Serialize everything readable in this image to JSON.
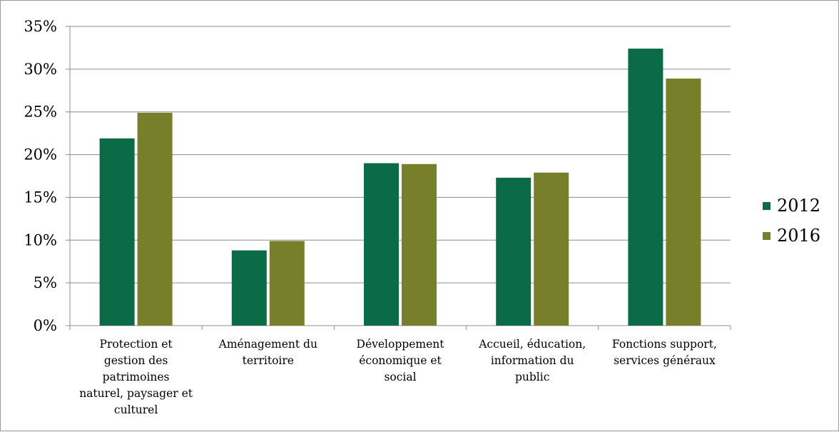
{
  "chart_data": {
    "type": "bar",
    "categories": [
      "Protection et gestion des patrimoines naturel, paysager et culturel",
      "Aménagement du territoire",
      "Développement économique et social",
      "Accueil, éducation, information du public",
      "Fonctions support, services généraux"
    ],
    "category_lines": [
      [
        "Protection et",
        "gestion des",
        "patrimoines",
        "naturel, paysager et",
        "culturel"
      ],
      [
        "Aménagement du",
        "territoire"
      ],
      [
        "Développement",
        "économique et",
        "social"
      ],
      [
        "Accueil, éducation,",
        "information du",
        "public"
      ],
      [
        "Fonctions support,",
        "services généraux"
      ]
    ],
    "series": [
      {
        "name": "2012",
        "color": "#0b6b47",
        "values": [
          21.9,
          8.8,
          19.0,
          17.3,
          32.4
        ]
      },
      {
        "name": "2016",
        "color": "#777f2a",
        "values": [
          24.9,
          9.9,
          18.9,
          17.9,
          28.9
        ]
      }
    ],
    "yticks": [
      "0%",
      "5%",
      "10%",
      "15%",
      "20%",
      "25%",
      "30%",
      "35%"
    ],
    "ylim": [
      0,
      35
    ],
    "grid": true,
    "legend_position": "right",
    "title": "",
    "xlabel": "",
    "ylabel": ""
  }
}
